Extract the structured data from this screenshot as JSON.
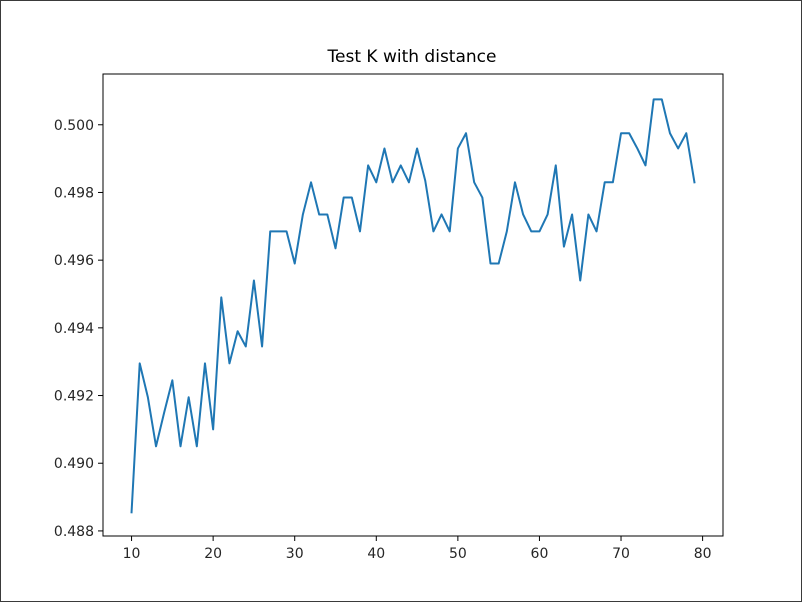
{
  "chart_data": {
    "type": "line",
    "title": "Test K with distance",
    "xlabel": "",
    "ylabel": "",
    "xlim": [
      6.5,
      82.5
    ],
    "ylim": [
      0.48785,
      0.5015
    ],
    "xticks": [
      10,
      20,
      30,
      40,
      50,
      60,
      70,
      80
    ],
    "yticks": [
      0.488,
      0.49,
      0.492,
      0.494,
      0.496,
      0.498,
      0.5
    ],
    "ytick_labels": [
      "0.488",
      "0.490",
      "0.492",
      "0.494",
      "0.496",
      "0.498",
      "0.500"
    ],
    "grid": false,
    "line_color": "#1f77b4",
    "series": [
      {
        "x": [
          10,
          11,
          12,
          13,
          14,
          15,
          16,
          17,
          18,
          19,
          20,
          21,
          22,
          23,
          24,
          25,
          26,
          27,
          28,
          29,
          30,
          31,
          32,
          33,
          34,
          35,
          36,
          37,
          38,
          39,
          40,
          41,
          42,
          43,
          44,
          45,
          46,
          47,
          48,
          49,
          50,
          51,
          52,
          53,
          54,
          55,
          56,
          57,
          58,
          59,
          60,
          61,
          62,
          63,
          64,
          65,
          66,
          67,
          68,
          69,
          70,
          71,
          72,
          73,
          74,
          75,
          76,
          77,
          78,
          79
        ],
        "y": [
          0.48855,
          0.49295,
          0.49195,
          0.4905,
          0.4915,
          0.49245,
          0.4905,
          0.49195,
          0.4905,
          0.49295,
          0.491,
          0.4949,
          0.49295,
          0.4939,
          0.49345,
          0.4954,
          0.49345,
          0.49685,
          0.49685,
          0.49685,
          0.4959,
          0.49735,
          0.4983,
          0.49735,
          0.49735,
          0.49635,
          0.49785,
          0.49785,
          0.49685,
          0.4988,
          0.4983,
          0.4993,
          0.4983,
          0.4988,
          0.4983,
          0.4993,
          0.49835,
          0.49685,
          0.49735,
          0.49685,
          0.4993,
          0.49975,
          0.4983,
          0.49785,
          0.4959,
          0.4959,
          0.49685,
          0.4983,
          0.49735,
          0.49685,
          0.49685,
          0.49735,
          0.4988,
          0.4964,
          0.49735,
          0.4954,
          0.49735,
          0.49685,
          0.4983,
          0.4983,
          0.49975,
          0.49975,
          0.4993,
          0.4988,
          0.50075,
          0.50075,
          0.49975,
          0.4993,
          0.49975,
          0.4983
        ]
      }
    ]
  }
}
